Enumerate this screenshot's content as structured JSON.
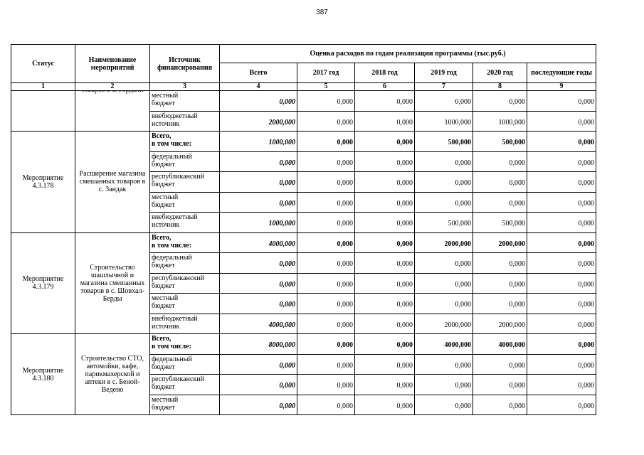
{
  "page_number": "387",
  "table": {
    "header": {
      "status": "Статус",
      "name": "Наименование мероприятий",
      "source": "Источник финансирования",
      "estimate": "Оценка расходов по годам реализации  программы (тыс.руб.)",
      "columns": [
        "Всего",
        "2017 год",
        "2018 год",
        "2019 год",
        "2020 год",
        "последующие годы"
      ],
      "numbers": [
        "1",
        "2",
        "3",
        "4",
        "5",
        "6",
        "7",
        "8",
        "9"
      ]
    },
    "groups": [
      {
        "name": "товаров в с. Гордали",
        "rows": [
          {
            "source": "местный\nбюджет",
            "values": [
              "0,000",
              "0,000",
              "0,000",
              "0,000",
              "0,000",
              "0,000"
            ]
          },
          {
            "source": "внебюджетный\nисточник",
            "values": [
              "2000,000",
              "0,000",
              "0,000",
              "1000,000",
              "1000,000",
              "0,000"
            ]
          }
        ]
      },
      {
        "status": "Мероприятие\n4.3.178",
        "name": "Расширение магазина смешанных товаров в с. Зандак",
        "rows": [
          {
            "source": "Всего,\nв том числе:",
            "values": [
              "1000,000",
              "0,000",
              "0,000",
              "500,000",
              "500,000",
              "0,000"
            ]
          },
          {
            "source": "федеральный\nбюджет",
            "values": [
              "0,000",
              "0,000",
              "0,000",
              "0,000",
              "0,000",
              "0,000"
            ]
          },
          {
            "source": "республиканский\nбюджет",
            "values": [
              "0,000",
              "0,000",
              "0,000",
              "0,000",
              "0,000",
              "0,000"
            ]
          },
          {
            "source": "местный\nбюджет",
            "values": [
              "0,000",
              "0,000",
              "0,000",
              "0,000",
              "0,000",
              "0,000"
            ]
          },
          {
            "source": "внебюджетный\nисточник",
            "values": [
              "1000,000",
              "0,000",
              "0,000",
              "500,000",
              "500,000",
              "0,000"
            ]
          }
        ]
      },
      {
        "status": "Мероприятие\n4.3.179",
        "name": "Строительство шашлычной и магазина смешанных товаров в с. Шовхал-Берды",
        "rows": [
          {
            "source": "Всего,\nв том числе:",
            "values": [
              "4000,000",
              "0,000",
              "0,000",
              "2000,000",
              "2000,000",
              "0,000"
            ]
          },
          {
            "source": "федеральный\nбюджет",
            "values": [
              "0,000",
              "0,000",
              "0,000",
              "0,000",
              "0,000",
              "0,000"
            ]
          },
          {
            "source": "республиканский\nбюджет",
            "values": [
              "0,000",
              "0,000",
              "0,000",
              "0,000",
              "0,000",
              "0,000"
            ]
          },
          {
            "source": "местный\nбюджет",
            "values": [
              "0,000",
              "0,000",
              "0,000",
              "0,000",
              "0,000",
              "0,000"
            ]
          },
          {
            "source": "внебюджетный\nисточник",
            "values": [
              "4000,000",
              "0,000",
              "0,000",
              "2000,000",
              "2000,000",
              "0,000"
            ]
          }
        ]
      },
      {
        "status": "Мероприятие\n4.3.180",
        "name": "Строительство СТО, автомойки, кафе, парикмахерской и аптеки в с. Беной-Ведено",
        "rows": [
          {
            "source": "Всего,\nв том числе:",
            "values": [
              "8000,000",
              "0,000",
              "0,000",
              "4000,000",
              "4000,000",
              "0,000"
            ]
          },
          {
            "source": "федеральный\nбюджет",
            "values": [
              "0,000",
              "0,000",
              "0,000",
              "0,000",
              "0,000",
              "0,000"
            ]
          },
          {
            "source": "республиканский\nбюджет",
            "values": [
              "0,000",
              "0,000",
              "0,000",
              "0,000",
              "0,000",
              "0,000"
            ]
          },
          {
            "source": "местный\nбюджет",
            "values": [
              "0,000",
              "0,000",
              "0,000",
              "0,000",
              "0,000",
              "0,000"
            ]
          }
        ]
      }
    ]
  }
}
